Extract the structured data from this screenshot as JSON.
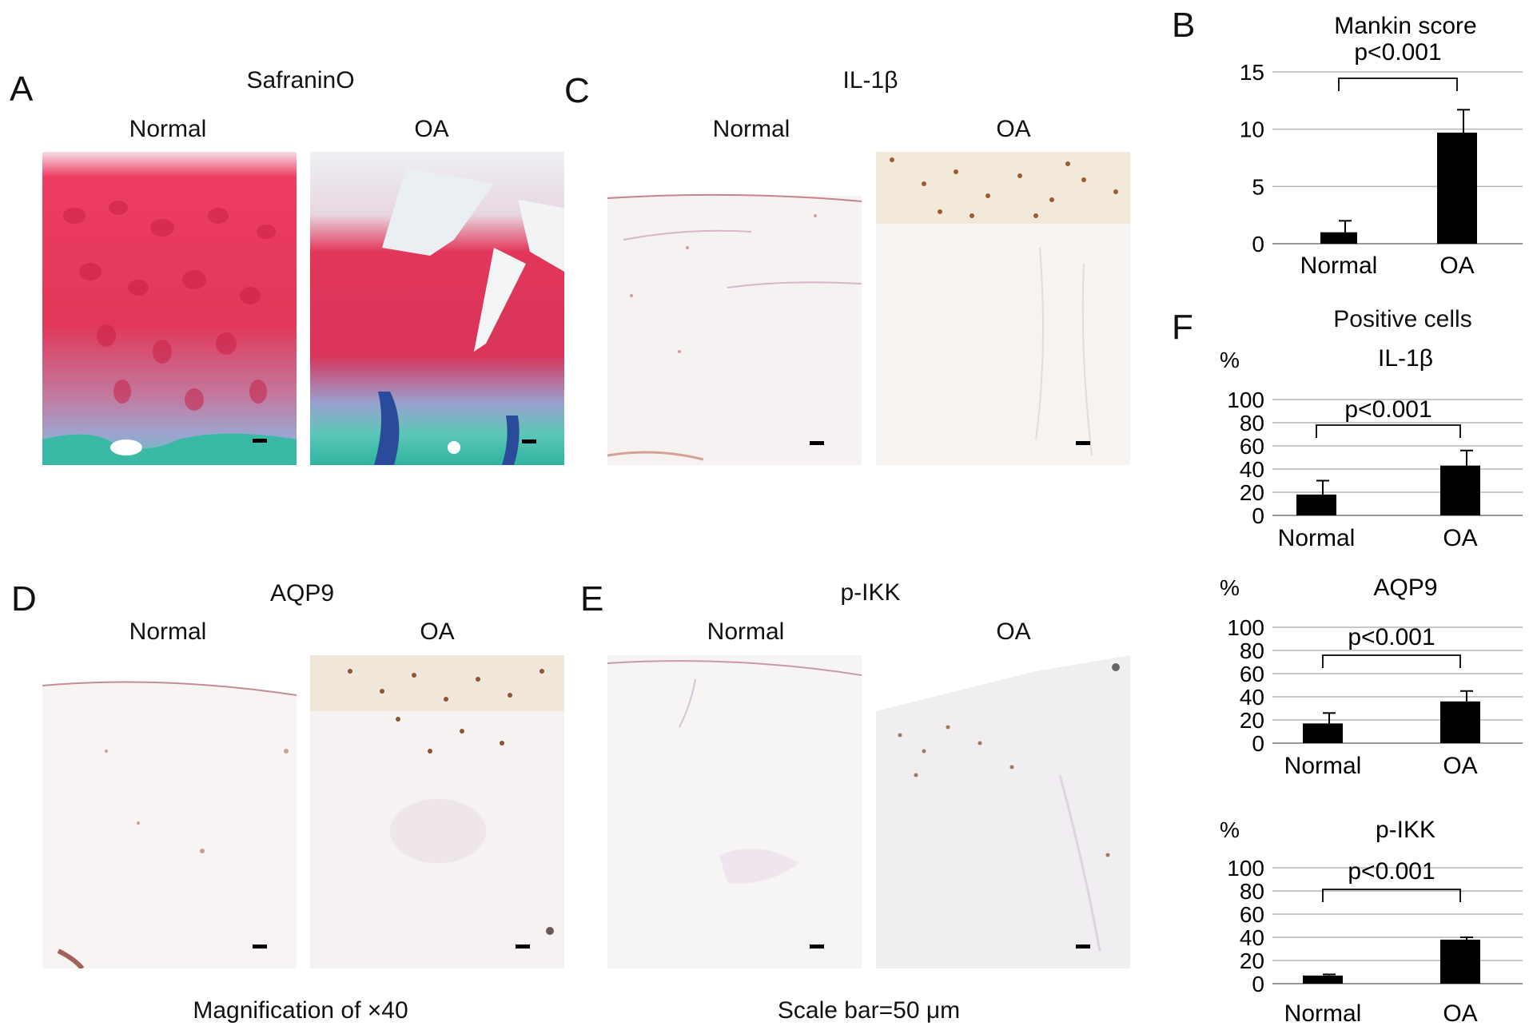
{
  "figure": {
    "panel_A": {
      "letter": "A",
      "title": "SafraninO",
      "normal": "Normal",
      "oa": "OA"
    },
    "panel_C": {
      "letter": "C",
      "title": "IL-1β",
      "normal": "Normal",
      "oa": "OA"
    },
    "panel_D": {
      "letter": "D",
      "title": "AQP9",
      "normal": "Normal",
      "oa": "OA"
    },
    "panel_E": {
      "letter": "E",
      "title": "p-IKK",
      "normal": "Normal",
      "oa": "OA"
    },
    "panel_B": {
      "letter": "B"
    },
    "panel_F": {
      "letter": "F",
      "heading": "Positive cells"
    },
    "magnification": "Magnification of ×40",
    "scale_bar": "Scale bar=50 μm"
  },
  "chart_data": [
    {
      "id": "mankin",
      "type": "bar",
      "title": "Mankin score",
      "unit": "",
      "categories": [
        "Normal",
        "OA"
      ],
      "values": [
        1.0,
        9.7
      ],
      "errors": [
        1.0,
        2.0
      ],
      "yticks": [
        0,
        5,
        10,
        15
      ],
      "ylim": [
        0,
        15
      ],
      "significance": "p<0.001",
      "grid": true,
      "color": "#000000"
    },
    {
      "id": "il1b",
      "type": "bar",
      "title": "IL-1β",
      "unit": "%",
      "categories": [
        "Normal",
        "OA"
      ],
      "values": [
        18,
        43
      ],
      "errors": [
        12,
        13
      ],
      "yticks": [
        0,
        20,
        40,
        60,
        80,
        100
      ],
      "ylim": [
        0,
        100
      ],
      "significance": "p<0.001",
      "grid": true,
      "color": "#000000"
    },
    {
      "id": "aqp9",
      "type": "bar",
      "title": "AQP9",
      "unit": "%",
      "categories": [
        "Normal",
        "OA"
      ],
      "values": [
        17,
        36
      ],
      "errors": [
        9,
        9
      ],
      "yticks": [
        0,
        20,
        40,
        60,
        80,
        100
      ],
      "ylim": [
        0,
        100
      ],
      "significance": "p<0.001",
      "grid": true,
      "color": "#000000"
    },
    {
      "id": "pikk",
      "type": "bar",
      "title": "p-IKK",
      "unit": "%",
      "categories": [
        "Normal",
        "OA"
      ],
      "values": [
        7,
        38
      ],
      "errors": [
        1,
        2
      ],
      "yticks": [
        0,
        20,
        40,
        60,
        80,
        100
      ],
      "ylim": [
        0,
        100
      ],
      "significance": "p<0.001",
      "grid": true,
      "color": "#000000"
    }
  ]
}
